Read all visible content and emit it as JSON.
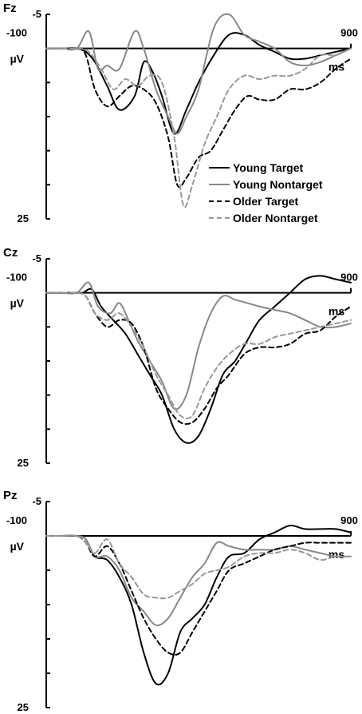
{
  "colors": {
    "young_target": "#000000",
    "young_nontarget": "#888888",
    "older_target": "#000000",
    "older_nontarget": "#999999"
  },
  "legend": {
    "placement": "right-bottom of first panel",
    "items": [
      {
        "label": "Young Target",
        "dash": "solid",
        "color": "#000000"
      },
      {
        "label": "Young Nontarget",
        "dash": "solid",
        "color": "#888888"
      },
      {
        "label": "Older Target",
        "dash": "dashed",
        "color": "#000000"
      },
      {
        "label": "Older Nontarget",
        "dash": "dashed",
        "color": "#999999"
      }
    ]
  },
  "chart_data": [
    {
      "type": "line",
      "title": "Fz",
      "ylabel": "µV",
      "xlabel": "ms",
      "x_start_label": "-100",
      "x_end_label": "900",
      "y_top_label": "-5",
      "y_bottom_label": "25",
      "xlim": [
        -100,
        900
      ],
      "ylim": [
        -5,
        25
      ],
      "y_inverted": true,
      "y_ticks": [
        -5,
        0,
        5,
        10,
        15,
        20,
        25
      ],
      "series": [
        {
          "name": "Young Target",
          "x": [
            -100,
            -50,
            0,
            30,
            60,
            100,
            140,
            190,
            220,
            250,
            280,
            320,
            360,
            400,
            450,
            500,
            550,
            600,
            650,
            700,
            750,
            800,
            850,
            900
          ],
          "y": [
            0,
            0,
            0,
            0.5,
            2,
            5.5,
            9,
            7,
            2,
            3.5,
            7,
            12.5,
            9,
            5,
            1,
            -2,
            -2,
            -0.5,
            0.5,
            1.5,
            1.5,
            1,
            0.5,
            0
          ]
        },
        {
          "name": "Young Nontarget",
          "x": [
            -100,
            -50,
            0,
            40,
            70,
            100,
            140,
            190,
            220,
            260,
            300,
            330,
            360,
            400,
            450,
            500,
            550,
            600,
            650,
            700,
            750,
            800,
            850,
            900
          ],
          "y": [
            0,
            0,
            0,
            -2.5,
            3,
            2.5,
            3,
            -2.5,
            0,
            6,
            10,
            12.5,
            10,
            6,
            -3,
            -5,
            -2,
            -1,
            0,
            2,
            2.5,
            2,
            1,
            0
          ]
        },
        {
          "name": "Older Target",
          "x": [
            -100,
            -50,
            0,
            30,
            60,
            100,
            140,
            180,
            220,
            260,
            300,
            330,
            360,
            400,
            440,
            480,
            520,
            560,
            600,
            650,
            700,
            750,
            800,
            850,
            900
          ],
          "y": [
            0,
            0,
            0,
            1,
            6,
            8.5,
            7,
            5.5,
            6,
            8,
            13,
            20,
            19,
            16,
            15,
            12,
            9,
            7,
            7.5,
            7.5,
            6,
            6,
            5,
            3,
            1.5
          ]
        },
        {
          "name": "Older Nontarget",
          "x": [
            -100,
            -50,
            0,
            40,
            80,
            120,
            160,
            200,
            240,
            280,
            320,
            350,
            380,
            420,
            460,
            500,
            550,
            600,
            650,
            700,
            750,
            800,
            850,
            900
          ],
          "y": [
            0,
            0,
            0,
            0.5,
            3,
            6,
            4.5,
            5.5,
            4,
            5,
            13,
            23,
            20,
            14,
            10,
            6,
            4,
            4.5,
            4,
            4,
            3,
            1,
            1,
            0
          ]
        }
      ]
    },
    {
      "type": "line",
      "title": "Cz",
      "ylabel": "µV",
      "xlabel": "ms",
      "x_start_label": "-100",
      "x_end_label": "900",
      "y_top_label": "-5",
      "y_bottom_label": "25",
      "xlim": [
        -100,
        900
      ],
      "ylim": [
        -5,
        25
      ],
      "y_inverted": true,
      "y_ticks": [
        -5,
        0,
        5,
        10,
        15,
        20,
        25
      ],
      "series": [
        {
          "name": "Young Target",
          "x": [
            -100,
            -50,
            0,
            20,
            50,
            80,
            120,
            160,
            200,
            240,
            280,
            320,
            360,
            400,
            440,
            480,
            520,
            560,
            600,
            650,
            700,
            750,
            800,
            850,
            900
          ],
          "y": [
            0,
            0,
            0,
            0,
            -0.5,
            2,
            4,
            6,
            9,
            12,
            15,
            20,
            22,
            21,
            17,
            12,
            10,
            7,
            4,
            2,
            0,
            -2,
            -2.5,
            -2,
            -1.5
          ]
        },
        {
          "name": "Young Nontarget",
          "x": [
            -100,
            -50,
            0,
            40,
            70,
            110,
            140,
            170,
            200,
            240,
            280,
            320,
            360,
            400,
            440,
            480,
            520,
            560,
            600,
            650,
            700,
            750,
            800,
            850,
            900
          ],
          "y": [
            0,
            0,
            0,
            -1.5,
            2,
            3,
            1.5,
            4,
            7,
            10,
            13,
            17,
            15,
            8,
            3,
            0.5,
            1,
            1.5,
            2,
            2.5,
            3,
            4,
            5,
            5,
            4.5
          ]
        },
        {
          "name": "Older Target",
          "x": [
            -100,
            -50,
            0,
            30,
            60,
            100,
            140,
            180,
            220,
            260,
            300,
            340,
            380,
            420,
            460,
            500,
            550,
            600,
            650,
            700,
            750,
            800,
            850,
            900
          ],
          "y": [
            0,
            0,
            0,
            0.5,
            3,
            5,
            4,
            4.5,
            8,
            14,
            17,
            19,
            19,
            17,
            14,
            12,
            9,
            8,
            8,
            7.5,
            6,
            5.5,
            3.5,
            2
          ]
        },
        {
          "name": "Older Nontarget",
          "x": [
            -100,
            -50,
            0,
            30,
            60,
            100,
            140,
            180,
            220,
            260,
            300,
            340,
            380,
            420,
            460,
            500,
            550,
            600,
            650,
            700,
            750,
            800,
            850,
            900
          ],
          "y": [
            0,
            0,
            0,
            0.5,
            3,
            4,
            3,
            5,
            8,
            12,
            15,
            18,
            18,
            14,
            11,
            9,
            7.5,
            7.5,
            6.5,
            6,
            5.5,
            5,
            4.5,
            4
          ]
        }
      ]
    },
    {
      "type": "line",
      "title": "Pz",
      "ylabel": "µV",
      "xlabel": "ms",
      "x_start_label": "-100",
      "x_end_label": "900",
      "y_top_label": "-5",
      "y_bottom_label": "25",
      "xlim": [
        -100,
        900
      ],
      "ylim": [
        -5,
        25
      ],
      "y_inverted": true,
      "y_ticks": [
        -5,
        0,
        5,
        10,
        15,
        20,
        25
      ],
      "series": [
        {
          "name": "Young Target",
          "x": [
            -100,
            -50,
            0,
            30,
            60,
            100,
            140,
            180,
            220,
            260,
            300,
            340,
            380,
            420,
            460,
            500,
            550,
            600,
            650,
            700,
            750,
            800,
            850,
            900
          ],
          "y": [
            0,
            0,
            0,
            0.5,
            3,
            3.5,
            6,
            10,
            17,
            21.5,
            20,
            14,
            12,
            10,
            6,
            3,
            2.5,
            0.5,
            -0.5,
            -1.5,
            -1,
            -1,
            -1,
            -0.5
          ]
        },
        {
          "name": "Young Nontarget",
          "x": [
            -100,
            -50,
            0,
            30,
            60,
            100,
            140,
            180,
            220,
            260,
            300,
            340,
            380,
            420,
            460,
            500,
            550,
            600,
            650,
            700,
            750,
            800,
            850,
            900
          ],
          "y": [
            0,
            0,
            0,
            0.5,
            3,
            3,
            5,
            9,
            11,
            13,
            12,
            9,
            6,
            4,
            1,
            1.5,
            2,
            2,
            2,
            1.5,
            2,
            2.5,
            3,
            3
          ]
        },
        {
          "name": "Older Target",
          "x": [
            -100,
            -50,
            0,
            30,
            60,
            100,
            140,
            180,
            220,
            260,
            300,
            340,
            380,
            420,
            460,
            500,
            550,
            600,
            650,
            700,
            750,
            800,
            850,
            900
          ],
          "y": [
            0,
            0,
            0,
            1,
            3,
            1.5,
            4,
            8,
            12,
            15,
            17,
            17,
            14,
            11,
            8,
            5,
            4,
            3,
            2,
            1.5,
            1,
            1,
            1,
            1
          ]
        },
        {
          "name": "Older Nontarget",
          "x": [
            -100,
            -50,
            0,
            30,
            60,
            100,
            140,
            180,
            220,
            260,
            300,
            340,
            380,
            420,
            460,
            500,
            550,
            600,
            650,
            700,
            750,
            800,
            850,
            900
          ],
          "y": [
            0,
            0,
            0,
            1,
            2.5,
            0.5,
            4,
            6,
            8.5,
            9,
            9,
            8,
            7,
            5.5,
            5,
            4.5,
            3,
            2.5,
            2.5,
            2,
            2.5,
            3.5,
            3,
            3
          ]
        }
      ]
    }
  ]
}
